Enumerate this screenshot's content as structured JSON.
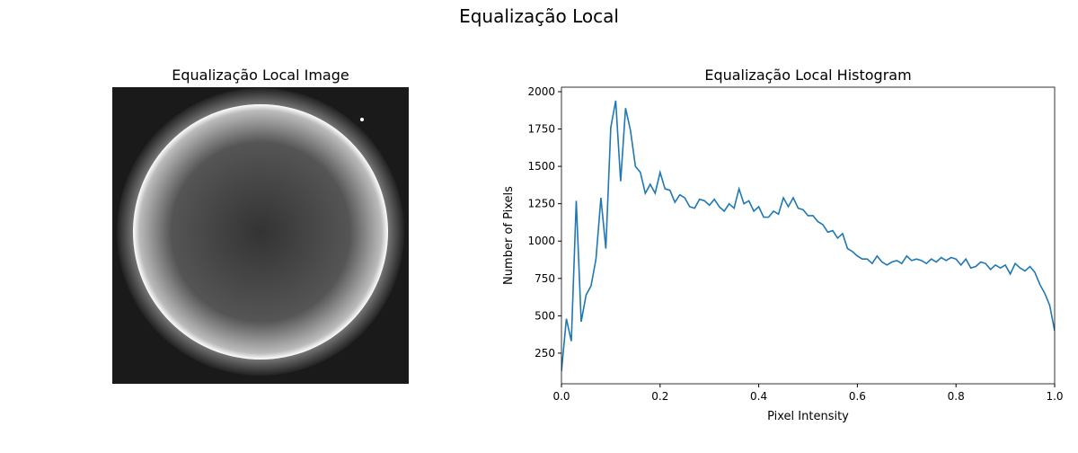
{
  "title": "Equalização Local",
  "chart_data": [
    {
      "type": "image",
      "title": "Equalização Local Image"
    },
    {
      "type": "line",
      "title": "Equalização Local Histogram",
      "x_label": "Pixel Intensity",
      "y_label": "Number of Pixels",
      "xlim": [
        0,
        1
      ],
      "ylim": [
        45,
        2030
      ],
      "xticks": [
        {
          "value": 0,
          "label": "0.0"
        },
        {
          "value": 0.2,
          "label": "0.2"
        },
        {
          "value": 0.4,
          "label": "0.4"
        },
        {
          "value": 0.6,
          "label": "0.6"
        },
        {
          "value": 0.8,
          "label": "0.8"
        },
        {
          "value": 1,
          "label": "1.0"
        }
      ],
      "yticks": [
        250,
        500,
        750,
        1000,
        1250,
        1500,
        1750,
        2000
      ],
      "series": [
        {
          "color": "#1f77b4",
          "x": [
            0,
            0.01,
            0.02,
            0.03,
            0.04,
            0.05,
            0.06,
            0.07,
            0.08,
            0.09,
            0.1,
            0.11,
            0.12,
            0.13,
            0.14,
            0.15,
            0.16,
            0.17,
            0.18,
            0.19,
            0.2,
            0.21,
            0.22,
            0.23,
            0.24,
            0.25,
            0.26,
            0.27,
            0.28,
            0.29,
            0.3,
            0.31,
            0.32,
            0.33,
            0.34,
            0.35,
            0.36,
            0.37,
            0.38,
            0.39,
            0.4,
            0.41,
            0.42,
            0.43,
            0.44,
            0.45,
            0.46,
            0.47,
            0.48,
            0.49,
            0.5,
            0.51,
            0.52,
            0.53,
            0.54,
            0.55,
            0.56,
            0.57,
            0.58,
            0.59,
            0.6,
            0.61,
            0.62,
            0.63,
            0.64,
            0.65,
            0.66,
            0.67,
            0.68,
            0.69,
            0.7,
            0.71,
            0.72,
            0.73,
            0.74,
            0.75,
            0.76,
            0.77,
            0.78,
            0.79,
            0.8,
            0.81,
            0.82,
            0.83,
            0.84,
            0.85,
            0.86,
            0.87,
            0.88,
            0.89,
            0.9,
            0.91,
            0.92,
            0.93,
            0.94,
            0.95,
            0.96,
            0.97,
            0.98,
            0.99,
            1
          ],
          "values": [
            130,
            480,
            330,
            1270,
            460,
            640,
            700,
            880,
            1290,
            950,
            1760,
            1940,
            1400,
            1890,
            1740,
            1500,
            1460,
            1320,
            1380,
            1320,
            1460,
            1350,
            1340,
            1260,
            1310,
            1290,
            1230,
            1220,
            1280,
            1270,
            1240,
            1280,
            1230,
            1200,
            1250,
            1220,
            1350,
            1250,
            1270,
            1200,
            1230,
            1160,
            1160,
            1200,
            1180,
            1290,
            1230,
            1290,
            1220,
            1210,
            1170,
            1170,
            1130,
            1110,
            1060,
            1070,
            1020,
            1050,
            950,
            930,
            900,
            880,
            880,
            850,
            900,
            860,
            840,
            860,
            870,
            850,
            900,
            870,
            880,
            870,
            850,
            880,
            860,
            890,
            870,
            890,
            880,
            840,
            880,
            820,
            830,
            860,
            850,
            810,
            840,
            820,
            840,
            780,
            850,
            820,
            800,
            830,
            790,
            710,
            650,
            570,
            400
          ]
        }
      ]
    }
  ]
}
